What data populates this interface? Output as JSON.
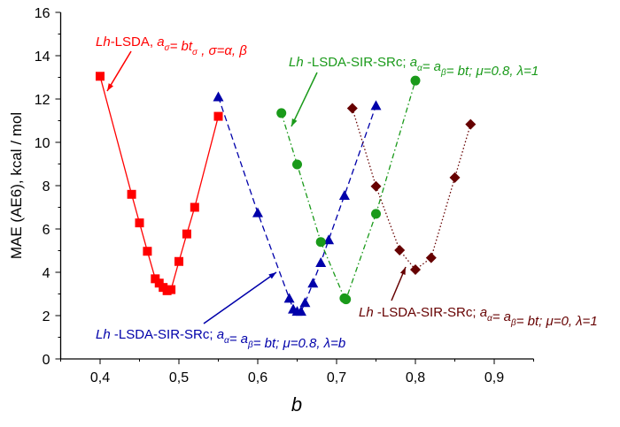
{
  "chart_data": {
    "type": "line",
    "xlabel": "b",
    "ylabel": "MAE (AE6), kcal / mol",
    "xlim": [
      0.35,
      0.95
    ],
    "ylim": [
      0,
      16
    ],
    "x_ticks": [
      "0,4",
      "0,5",
      "0,6",
      "0,7",
      "0,8",
      "0,9"
    ],
    "x_tick_values": [
      0.4,
      0.5,
      0.6,
      0.7,
      0.8,
      0.9
    ],
    "y_ticks": [
      "0",
      "2",
      "4",
      "6",
      "8",
      "10",
      "12",
      "14",
      "16"
    ],
    "grid": false,
    "series": [
      {
        "color": "#ff0000",
        "marker": "square",
        "line": "solid",
        "x": [
          0.4,
          0.44,
          0.45,
          0.46,
          0.47,
          0.475,
          0.48,
          0.485,
          0.49,
          0.5,
          0.51,
          0.52,
          0.55
        ],
        "y": [
          13.05,
          7.6,
          6.28,
          4.97,
          3.7,
          3.5,
          3.3,
          3.15,
          3.2,
          4.5,
          5.77,
          7.0,
          11.2
        ],
        "annotation": [
          {
            "t": "Lh",
            "i": true
          },
          {
            "t": "-LSDA, "
          },
          {
            "t": "a",
            "i": true
          },
          {
            "t": "σ",
            "i": true,
            "sub": true
          },
          {
            "t": "= bt",
            "i": true
          },
          {
            "t": "σ",
            "i": true,
            "sub": true
          },
          {
            "t": " , σ=α, β",
            "i": true
          }
        ]
      },
      {
        "color": "#0000aa",
        "marker": "triangle",
        "line": "dashed",
        "x": [
          0.55,
          0.6,
          0.64,
          0.645,
          0.65,
          0.655,
          0.66,
          0.67,
          0.68,
          0.69,
          0.71,
          0.75
        ],
        "y": [
          12.1,
          6.75,
          2.8,
          2.3,
          2.2,
          2.2,
          2.6,
          3.5,
          4.45,
          5.5,
          7.55,
          11.7
        ],
        "annotation": [
          {
            "t": "Lh",
            "i": true
          },
          {
            "t": " -LSDA-SIR-SRc; "
          },
          {
            "t": "a",
            "i": true
          },
          {
            "t": "α",
            "i": true,
            "sub": true
          },
          {
            "t": "= a",
            "i": true
          },
          {
            "t": "β",
            "i": true,
            "sub": true
          },
          {
            "t": "= bt; μ=0.8, λ=b",
            "i": true
          }
        ]
      },
      {
        "color": "#1a9a1a",
        "marker": "circle",
        "line": "dashdot",
        "x": [
          0.63,
          0.65,
          0.68,
          0.71,
          0.712,
          0.75,
          0.8
        ],
        "y": [
          11.35,
          8.98,
          5.4,
          2.8,
          2.75,
          6.7,
          12.85
        ],
        "annotation": [
          {
            "t": "Lh",
            "i": true
          },
          {
            "t": " -LSDA-SIR-SRc; "
          },
          {
            "t": "a",
            "i": true
          },
          {
            "t": "α",
            "i": true,
            "sub": true
          },
          {
            "t": "= a",
            "i": true
          },
          {
            "t": "β",
            "i": true,
            "sub": true
          },
          {
            "t": "= bt; μ=0.8, λ=1",
            "i": true
          }
        ]
      },
      {
        "color": "#660000",
        "marker": "diamond",
        "line": "dotted",
        "x": [
          0.72,
          0.75,
          0.78,
          0.8,
          0.82,
          0.85,
          0.87
        ],
        "y": [
          11.57,
          7.97,
          5.02,
          4.12,
          4.67,
          8.37,
          10.83
        ],
        "annotation": [
          {
            "t": "Lh",
            "i": true
          },
          {
            "t": " -LSDA-SIR-SRc; "
          },
          {
            "t": "a",
            "i": true
          },
          {
            "t": "α",
            "i": true,
            "sub": true
          },
          {
            "t": "= a",
            "i": true
          },
          {
            "t": "β",
            "i": true,
            "sub": true
          },
          {
            "t": "= bt; μ=0, λ=1",
            "i": true
          }
        ]
      }
    ]
  }
}
